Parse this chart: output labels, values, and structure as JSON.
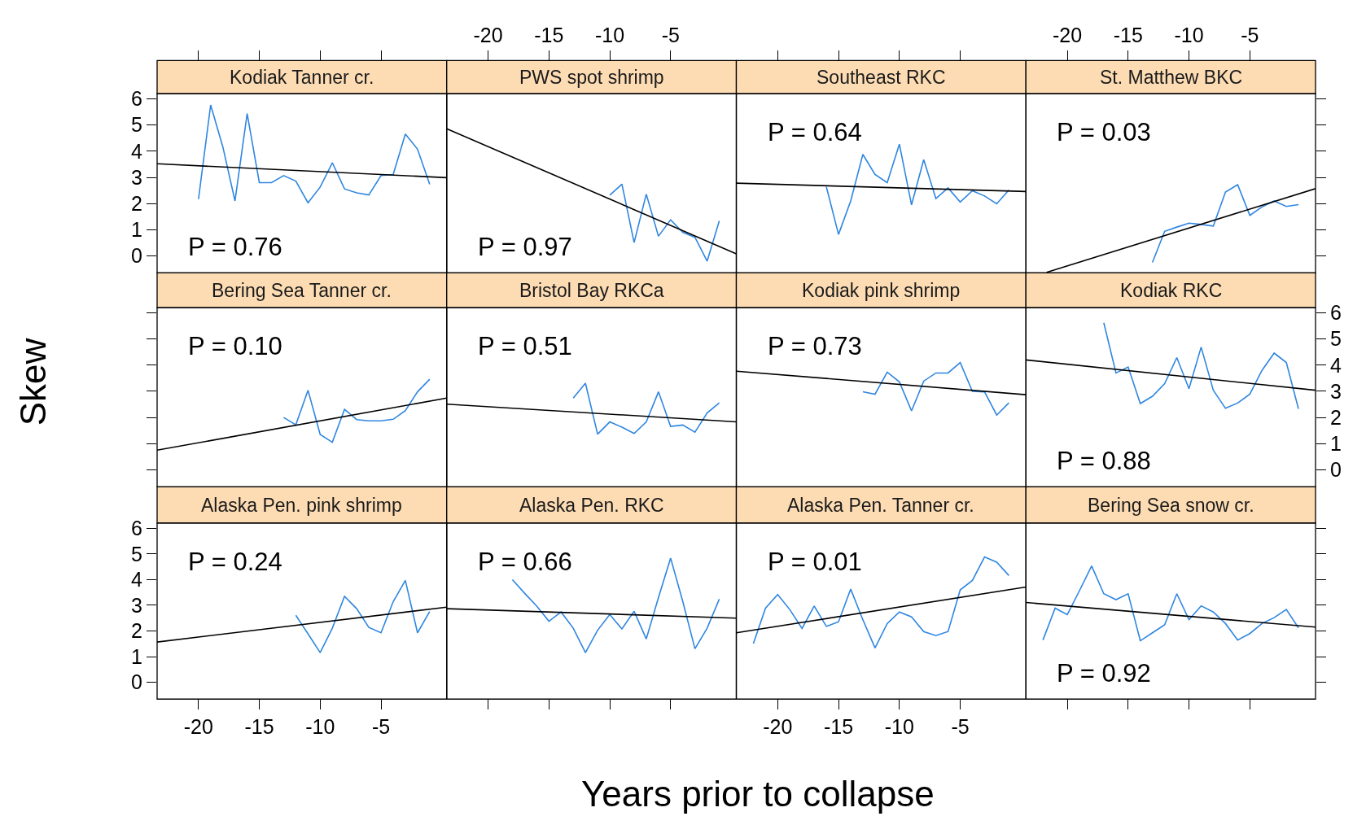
{
  "chart_data": [
    {
      "type": "line",
      "title": "Kodiak Tanner cr.",
      "xlabel": "Years prior to collapse",
      "ylabel": "Skew",
      "xlim": [
        -23.4,
        0.4
      ],
      "xticks": [
        -20,
        -15,
        -10,
        -5
      ],
      "ylim": [
        -0.65,
        6.2
      ],
      "yticks": [
        0,
        1,
        2,
        3,
        4,
        5,
        6
      ],
      "tick_labels": "y",
      "annotations": [
        "P = 0.76"
      ],
      "series": [
        {
          "color": "#2f86e0",
          "x": [
            -20,
            -19,
            -18,
            -17,
            -16,
            -15,
            -14,
            -13,
            -12,
            -11,
            -10,
            -9,
            -8,
            -7,
            -6,
            -5,
            -4,
            -3,
            -2,
            -1
          ],
          "values": [
            2.17,
            5.77,
            4.17,
            2.1,
            5.44,
            2.8,
            2.8,
            3.07,
            2.86,
            2.03,
            2.63,
            3.56,
            2.56,
            2.41,
            2.33,
            3.07,
            3.11,
            4.66,
            4.08,
            2.74
          ]
        },
        {
          "color": "#000000",
          "x": [
            -23.4,
            0.4
          ],
          "values": [
            3.52,
            2.99
          ]
        }
      ]
    },
    {
      "type": "line",
      "title": "PWS spot shrimp",
      "xlim": [
        -23.4,
        0.4
      ],
      "xticks": [
        -20,
        -15,
        -10,
        -5
      ],
      "ylim": [
        -0.65,
        6.2
      ],
      "yticks": [
        0,
        1,
        2,
        3,
        4,
        5,
        6
      ],
      "tick_labels": "x",
      "annotations": [
        "P = 0.97"
      ],
      "series": [
        {
          "color": "#2f86e0",
          "x": [
            -10,
            -9,
            -8,
            -7,
            -6,
            -5,
            -4,
            -3,
            -2,
            -1
          ],
          "values": [
            2.32,
            2.74,
            0.51,
            2.36,
            0.75,
            1.38,
            0.9,
            0.71,
            -0.2,
            1.34
          ]
        },
        {
          "color": "#000000",
          "x": [
            -23.4,
            0.4
          ],
          "values": [
            4.86,
            0.08
          ]
        }
      ]
    },
    {
      "type": "line",
      "title": "Southeast RKC",
      "xlim": [
        -23.4,
        0.4
      ],
      "xticks": [
        -20,
        -15,
        -10,
        -5
      ],
      "ylim": [
        -0.65,
        6.2
      ],
      "yticks": [
        0,
        1,
        2,
        3,
        4,
        5,
        6
      ],
      "tick_labels": false,
      "annotations": [
        "P = 0.64"
      ],
      "series": [
        {
          "color": "#2f86e0",
          "x": [
            -16,
            -15,
            -14,
            -13,
            -12,
            -11,
            -10,
            -9,
            -8,
            -7,
            -6,
            -5,
            -4,
            -3,
            -2,
            -1
          ],
          "values": [
            2.64,
            0.82,
            2.1,
            3.88,
            3.11,
            2.8,
            4.27,
            1.95,
            3.68,
            2.19,
            2.6,
            2.06,
            2.49,
            2.29,
            1.99,
            2.52
          ]
        },
        {
          "color": "#000000",
          "x": [
            -23.4,
            0.4
          ],
          "values": [
            2.78,
            2.46
          ]
        }
      ]
    },
    {
      "type": "line",
      "title": "St. Matthew BKC",
      "xlim": [
        -23.4,
        0.4
      ],
      "xticks": [
        -20,
        -15,
        -10,
        -5
      ],
      "ylim": [
        -0.65,
        6.2
      ],
      "yticks": [
        0,
        1,
        2,
        3,
        4,
        5,
        6
      ],
      "tick_labels": "x",
      "annotations": [
        "P = 0.03"
      ],
      "series": [
        {
          "color": "#2f86e0",
          "x": [
            -13,
            -12,
            -11,
            -10,
            -9,
            -8,
            -7,
            -6,
            -5,
            -4,
            -3,
            -2,
            -1
          ],
          "values": [
            -0.25,
            0.94,
            1.1,
            1.25,
            1.2,
            1.14,
            2.44,
            2.72,
            1.55,
            1.87,
            2.1,
            1.89,
            1.96
          ]
        },
        {
          "color": "#000000",
          "x": [
            -21.7,
            0.4
          ],
          "values": [
            -0.63,
            2.57
          ]
        }
      ]
    },
    {
      "type": "line",
      "title": "Bering Sea Tanner cr.",
      "xlim": [
        -23.4,
        0.4
      ],
      "xticks": [
        -20,
        -15,
        -10,
        -5
      ],
      "ylim": [
        -0.65,
        6.2
      ],
      "yticks": [
        0,
        1,
        2,
        3,
        4,
        5,
        6
      ],
      "tick_labels": false,
      "annotations": [
        "P = 0.10"
      ],
      "series": [
        {
          "color": "#2f86e0",
          "x": [
            -13,
            -12,
            -11,
            -10,
            -9,
            -8,
            -7,
            -6,
            -5,
            -4,
            -3,
            -2,
            -1
          ],
          "values": [
            2.0,
            1.72,
            3.04,
            1.35,
            1.05,
            2.31,
            1.92,
            1.87,
            1.87,
            1.93,
            2.26,
            2.98,
            3.46
          ]
        },
        {
          "color": "#000000",
          "x": [
            -23.4,
            0.4
          ],
          "values": [
            0.75,
            2.74
          ]
        }
      ]
    },
    {
      "type": "line",
      "title": "Bristol Bay RKCa",
      "xlim": [
        -23.4,
        0.4
      ],
      "xticks": [
        -20,
        -15,
        -10,
        -5
      ],
      "ylim": [
        -0.65,
        6.2
      ],
      "yticks": [
        0,
        1,
        2,
        3,
        4,
        5,
        6
      ],
      "tick_labels": false,
      "annotations": [
        "P = 0.51"
      ],
      "series": [
        {
          "color": "#2f86e0",
          "x": [
            -13,
            -12,
            -11,
            -10,
            -9,
            -8,
            -7,
            -6,
            -5,
            -4,
            -3,
            -2,
            -1
          ],
          "values": [
            2.74,
            3.31,
            1.36,
            1.83,
            1.63,
            1.39,
            1.83,
            2.98,
            1.66,
            1.71,
            1.44,
            2.17,
            2.56
          ]
        },
        {
          "color": "#000000",
          "x": [
            -23.4,
            0.4
          ],
          "values": [
            2.51,
            1.83
          ]
        }
      ]
    },
    {
      "type": "line",
      "title": "Kodiak pink shrimp",
      "xlim": [
        -23.4,
        0.4
      ],
      "xticks": [
        -20,
        -15,
        -10,
        -5
      ],
      "ylim": [
        -0.65,
        6.2
      ],
      "yticks": [
        0,
        1,
        2,
        3,
        4,
        5,
        6
      ],
      "tick_labels": false,
      "annotations": [
        "P = 0.73"
      ],
      "series": [
        {
          "color": "#2f86e0",
          "x": [
            -13,
            -12,
            -11,
            -10,
            -9,
            -8,
            -7,
            -6,
            -5,
            -4,
            -3,
            -2,
            -1
          ],
          "values": [
            2.98,
            2.89,
            3.73,
            3.36,
            2.25,
            3.39,
            3.7,
            3.7,
            4.1,
            3.0,
            2.98,
            2.09,
            2.56
          ]
        },
        {
          "color": "#000000",
          "x": [
            -23.4,
            0.4
          ],
          "values": [
            3.77,
            2.87
          ]
        }
      ]
    },
    {
      "type": "line",
      "title": "Kodiak RKC",
      "xlim": [
        -23.4,
        0.4
      ],
      "xticks": [
        -20,
        -15,
        -10,
        -5
      ],
      "ylim": [
        -0.65,
        6.2
      ],
      "yticks": [
        0,
        1,
        2,
        3,
        4,
        5,
        6
      ],
      "tick_labels": "y",
      "annotations": [
        "P = 0.88"
      ],
      "series": [
        {
          "color": "#2f86e0",
          "x": [
            -17,
            -16,
            -15,
            -14,
            -13,
            -12,
            -11,
            -10,
            -9,
            -8,
            -7,
            -6,
            -5,
            -4,
            -3,
            -2,
            -1
          ],
          "values": [
            5.62,
            3.7,
            3.93,
            2.53,
            2.81,
            3.29,
            4.29,
            3.1,
            4.69,
            3.04,
            2.35,
            2.55,
            2.89,
            3.8,
            4.46,
            4.1,
            2.33
          ]
        },
        {
          "color": "#000000",
          "x": [
            -23.4,
            0.4
          ],
          "values": [
            4.2,
            3.04
          ]
        }
      ]
    },
    {
      "type": "line",
      "title": "Alaska Pen. pink shrimp",
      "xlim": [
        -23.4,
        0.4
      ],
      "xticks": [
        -20,
        -15,
        -10,
        -5
      ],
      "ylim": [
        -0.65,
        6.2
      ],
      "yticks": [
        0,
        1,
        2,
        3,
        4,
        5,
        6
      ],
      "annotations": [
        "P = 0.24"
      ],
      "series": [
        {
          "color": "#2f86e0",
          "x": [
            -12,
            -11,
            -10,
            -9,
            -8,
            -7,
            -6,
            -5,
            -4,
            -3,
            -2,
            -1
          ],
          "values": [
            2.61,
            1.89,
            1.16,
            2.11,
            3.35,
            2.87,
            2.14,
            1.93,
            3.14,
            3.97,
            1.93,
            2.76
          ]
        },
        {
          "color": "#000000",
          "x": [
            -23.4,
            0.4
          ],
          "values": [
            1.57,
            2.93
          ]
        }
      ]
    },
    {
      "type": "line",
      "title": "Alaska Pen. RKC",
      "xlim": [
        -23.4,
        0.4
      ],
      "xticks": [
        -20,
        -15,
        -10,
        -5
      ],
      "ylim": [
        -0.65,
        6.2
      ],
      "yticks": [
        0,
        1,
        2,
        3,
        4,
        5,
        6
      ],
      "tick_labels": false,
      "annotations": [
        "P = 0.66"
      ],
      "series": [
        {
          "color": "#2f86e0",
          "x": [
            -18,
            -17,
            -16,
            -15,
            -14,
            -13,
            -12,
            -11,
            -10,
            -9,
            -8,
            -7,
            -6,
            -5,
            -4,
            -3,
            -2,
            -1
          ],
          "values": [
            4.0,
            3.47,
            2.97,
            2.38,
            2.74,
            2.11,
            1.16,
            2.03,
            2.64,
            2.08,
            2.77,
            1.69,
            3.3,
            4.84,
            3.15,
            1.31,
            2.11,
            3.24
          ]
        },
        {
          "color": "#000000",
          "x": [
            -23.4,
            0.4
          ],
          "values": [
            2.87,
            2.5
          ]
        }
      ]
    },
    {
      "type": "line",
      "title": "Alaska Pen. Tanner cr.",
      "xlim": [
        -23.4,
        0.4
      ],
      "xticks": [
        -20,
        -15,
        -10,
        -5
      ],
      "ylim": [
        -0.65,
        6.2
      ],
      "yticks": [
        0,
        1,
        2,
        3,
        4,
        5,
        6
      ],
      "tick_labels": "x",
      "annotations": [
        "P = 0.01"
      ],
      "series": [
        {
          "color": "#2f86e0",
          "x": [
            -22,
            -21,
            -20,
            -19,
            -18,
            -17,
            -16,
            -15,
            -14,
            -13,
            -12,
            -11,
            -10,
            -9,
            -8,
            -7,
            -6,
            -5,
            -4,
            -3,
            -2,
            -1
          ],
          "values": [
            1.51,
            2.89,
            3.42,
            2.83,
            2.1,
            2.97,
            2.18,
            2.36,
            3.63,
            2.44,
            1.34,
            2.29,
            2.74,
            2.55,
            1.98,
            1.82,
            1.98,
            3.6,
            3.97,
            4.88,
            4.68,
            4.16
          ]
        },
        {
          "color": "#000000",
          "x": [
            -23.4,
            0.4
          ],
          "values": [
            1.93,
            3.71
          ]
        }
      ]
    },
    {
      "type": "line",
      "title": "Bering Sea snow cr.",
      "xlim": [
        -23.4,
        0.4
      ],
      "xticks": [
        -20,
        -15,
        -10,
        -5
      ],
      "ylim": [
        -0.65,
        6.2
      ],
      "yticks": [
        0,
        1,
        2,
        3,
        4,
        5,
        6
      ],
      "tick_labels": false,
      "annotations": [
        "P = 0.92"
      ],
      "series": [
        {
          "color": "#2f86e0",
          "x": [
            -22,
            -21,
            -20,
            -19,
            -18,
            -17,
            -16,
            -15,
            -14,
            -13,
            -12,
            -11,
            -10,
            -9,
            -8,
            -7,
            -6,
            -5,
            -4,
            -3,
            -2,
            -1
          ],
          "values": [
            1.65,
            2.89,
            2.64,
            3.57,
            4.53,
            3.45,
            3.22,
            3.45,
            1.62,
            1.93,
            2.24,
            3.45,
            2.44,
            2.98,
            2.74,
            2.29,
            1.65,
            1.9,
            2.29,
            2.52,
            2.84,
            2.12
          ]
        },
        {
          "color": "#000000",
          "x": [
            -23.4,
            0.4
          ],
          "values": [
            3.11,
            2.15
          ]
        }
      ]
    }
  ]
}
